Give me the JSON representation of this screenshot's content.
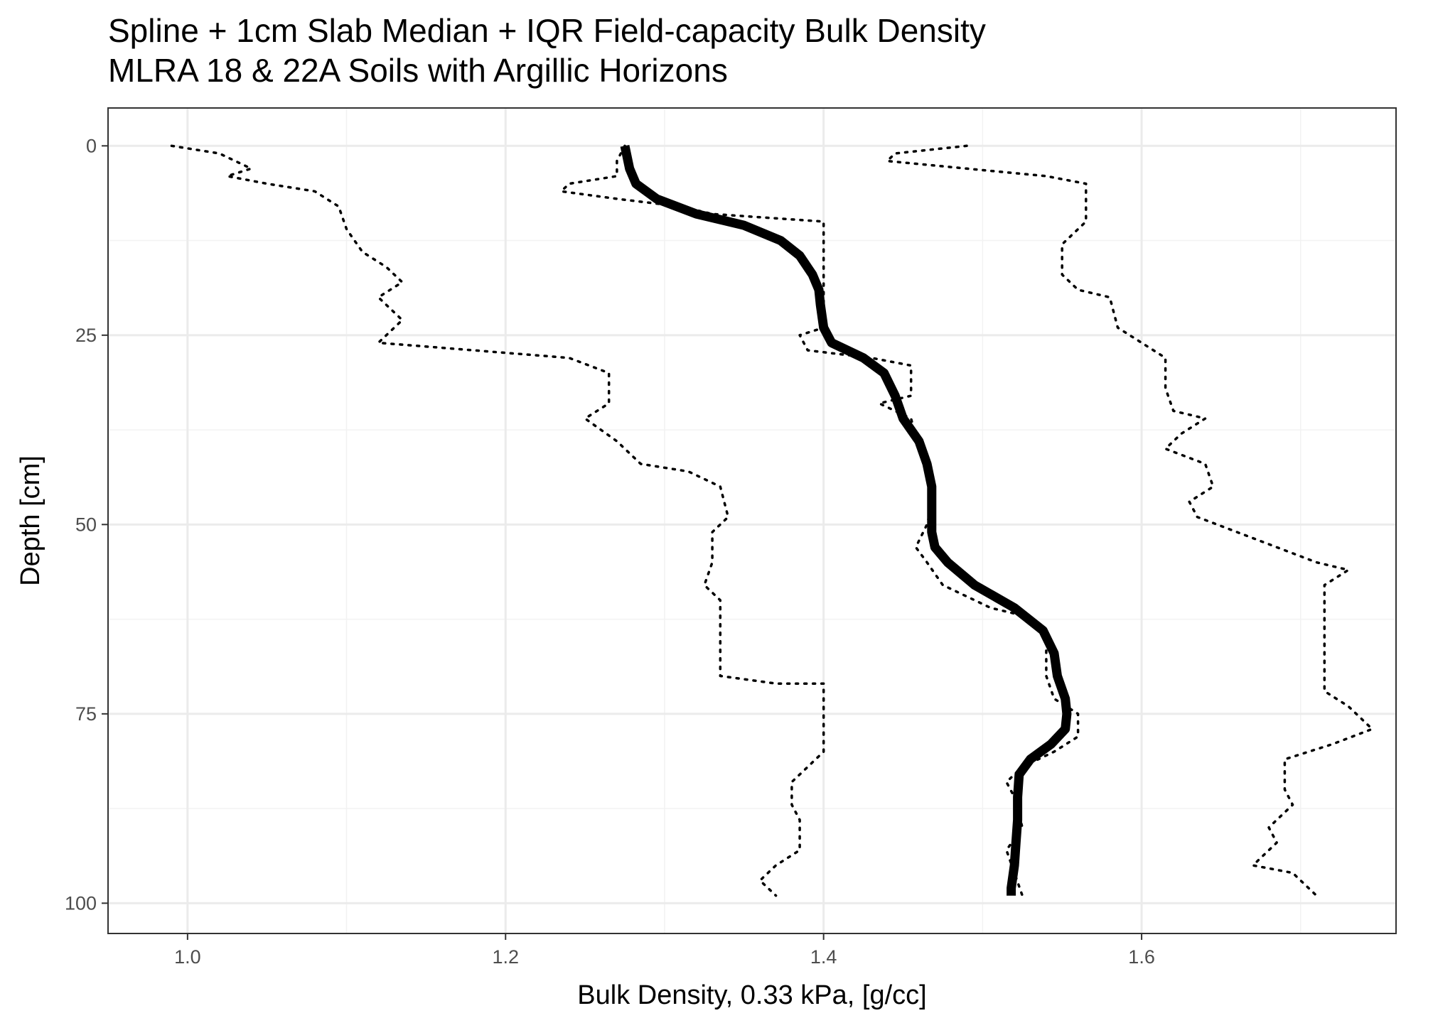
{
  "chart_data": {
    "type": "line",
    "title": "Spline + 1cm Slab Median + IQR Field-capacity Bulk Density",
    "subtitle": "MLRA 18 & 22A Soils with Argillic Horizons",
    "xlabel": "Bulk Density, 0.33 kPa, [g/cc]",
    "ylabel": "Depth [cm]",
    "xlim": [
      0.95,
      1.76
    ],
    "ylim": [
      -5,
      104
    ],
    "y_reversed": true,
    "grid": true,
    "x_ticks": [
      "1.0",
      "1.2",
      "1.4",
      "1.6"
    ],
    "x_tick_values": [
      1.0,
      1.2,
      1.4,
      1.6
    ],
    "y_ticks": [
      "0",
      "25",
      "50",
      "75",
      "100"
    ],
    "y_tick_values": [
      0,
      25,
      50,
      75,
      100
    ],
    "series": [
      {
        "style": "solid-thick",
        "points": [
          [
            1.275,
            0
          ],
          [
            1.278,
            3
          ],
          [
            1.282,
            5
          ],
          [
            1.295,
            7
          ],
          [
            1.32,
            9
          ],
          [
            1.35,
            10.5
          ],
          [
            1.373,
            12.5
          ],
          [
            1.385,
            14.5
          ],
          [
            1.393,
            17
          ],
          [
            1.397,
            19
          ],
          [
            1.398,
            21
          ],
          [
            1.4,
            24
          ],
          [
            1.405,
            26
          ],
          [
            1.425,
            28
          ],
          [
            1.438,
            30
          ],
          [
            1.445,
            33
          ],
          [
            1.45,
            36
          ],
          [
            1.46,
            39
          ],
          [
            1.465,
            42
          ],
          [
            1.468,
            45
          ],
          [
            1.468,
            48
          ],
          [
            1.468,
            51
          ],
          [
            1.47,
            53
          ],
          [
            1.478,
            55
          ],
          [
            1.495,
            58
          ],
          [
            1.52,
            61
          ],
          [
            1.538,
            64
          ],
          [
            1.545,
            67
          ],
          [
            1.547,
            70
          ],
          [
            1.552,
            73
          ],
          [
            1.553,
            75
          ],
          [
            1.552,
            77
          ],
          [
            1.543,
            79
          ],
          [
            1.53,
            81
          ],
          [
            1.523,
            83
          ],
          [
            1.522,
            86
          ],
          [
            1.522,
            89
          ],
          [
            1.521,
            92
          ],
          [
            1.52,
            95
          ],
          [
            1.518,
            98
          ],
          [
            1.518,
            99
          ]
        ]
      },
      {
        "style": "dotted",
        "points": [
          [
            1.275,
            0
          ],
          [
            1.27,
            2
          ],
          [
            1.27,
            4
          ],
          [
            1.24,
            5
          ],
          [
            1.235,
            6
          ],
          [
            1.27,
            7
          ],
          [
            1.31,
            8
          ],
          [
            1.33,
            9
          ],
          [
            1.4,
            10
          ],
          [
            1.4,
            15
          ],
          [
            1.4,
            20
          ],
          [
            1.4,
            24
          ],
          [
            1.385,
            25
          ],
          [
            1.39,
            27
          ],
          [
            1.43,
            28
          ],
          [
            1.455,
            29
          ],
          [
            1.455,
            33
          ],
          [
            1.435,
            34
          ],
          [
            1.455,
            36
          ],
          [
            1.46,
            40
          ],
          [
            1.465,
            43
          ],
          [
            1.47,
            46
          ],
          [
            1.465,
            50
          ],
          [
            1.458,
            53
          ],
          [
            1.465,
            55
          ],
          [
            1.475,
            58
          ],
          [
            1.495,
            60
          ],
          [
            1.505,
            61
          ],
          [
            1.525,
            62
          ],
          [
            1.54,
            64
          ],
          [
            1.54,
            70
          ],
          [
            1.545,
            73
          ],
          [
            1.56,
            75
          ],
          [
            1.56,
            78
          ],
          [
            1.545,
            80
          ],
          [
            1.525,
            82
          ],
          [
            1.515,
            84
          ],
          [
            1.52,
            86
          ],
          [
            1.525,
            90
          ],
          [
            1.515,
            93
          ],
          [
            1.52,
            96
          ],
          [
            1.525,
            99
          ]
        ]
      },
      {
        "style": "dotted",
        "points": [
          [
            0.99,
            0
          ],
          [
            1.02,
            1
          ],
          [
            1.04,
            3
          ],
          [
            1.025,
            4
          ],
          [
            1.05,
            5
          ],
          [
            1.08,
            6
          ],
          [
            1.095,
            8
          ],
          [
            1.1,
            11
          ],
          [
            1.11,
            14
          ],
          [
            1.125,
            16
          ],
          [
            1.135,
            18
          ],
          [
            1.12,
            20
          ],
          [
            1.135,
            23
          ],
          [
            1.12,
            26
          ],
          [
            1.18,
            27
          ],
          [
            1.24,
            28
          ],
          [
            1.265,
            30
          ],
          [
            1.265,
            34
          ],
          [
            1.25,
            36
          ],
          [
            1.27,
            39
          ],
          [
            1.285,
            42
          ],
          [
            1.315,
            43
          ],
          [
            1.335,
            45
          ],
          [
            1.34,
            49
          ],
          [
            1.33,
            51
          ],
          [
            1.33,
            55
          ],
          [
            1.325,
            58
          ],
          [
            1.335,
            60
          ],
          [
            1.335,
            65
          ],
          [
            1.335,
            70
          ],
          [
            1.37,
            71
          ],
          [
            1.4,
            71
          ],
          [
            1.4,
            80
          ],
          [
            1.39,
            82
          ],
          [
            1.38,
            84
          ],
          [
            1.38,
            87
          ],
          [
            1.385,
            89
          ],
          [
            1.385,
            93
          ],
          [
            1.37,
            95
          ],
          [
            1.36,
            97
          ],
          [
            1.37,
            99
          ]
        ]
      },
      {
        "style": "dotted",
        "points": [
          [
            1.49,
            0
          ],
          [
            1.445,
            1
          ],
          [
            1.44,
            2
          ],
          [
            1.49,
            3
          ],
          [
            1.54,
            4
          ],
          [
            1.565,
            5
          ],
          [
            1.565,
            10
          ],
          [
            1.55,
            13
          ],
          [
            1.55,
            17
          ],
          [
            1.56,
            19
          ],
          [
            1.58,
            20
          ],
          [
            1.585,
            24
          ],
          [
            1.6,
            26
          ],
          [
            1.615,
            28
          ],
          [
            1.615,
            32
          ],
          [
            1.62,
            35
          ],
          [
            1.64,
            36
          ],
          [
            1.625,
            38
          ],
          [
            1.615,
            40
          ],
          [
            1.64,
            42
          ],
          [
            1.645,
            45
          ],
          [
            1.63,
            47
          ],
          [
            1.635,
            49
          ],
          [
            1.66,
            51
          ],
          [
            1.685,
            53
          ],
          [
            1.71,
            55
          ],
          [
            1.73,
            56
          ],
          [
            1.715,
            58
          ],
          [
            1.715,
            65
          ],
          [
            1.715,
            72
          ],
          [
            1.73,
            74
          ],
          [
            1.745,
            77
          ],
          [
            1.72,
            79
          ],
          [
            1.69,
            81
          ],
          [
            1.69,
            85
          ],
          [
            1.695,
            87
          ],
          [
            1.68,
            90
          ],
          [
            1.685,
            92
          ],
          [
            1.675,
            94
          ],
          [
            1.67,
            95
          ],
          [
            1.695,
            96
          ],
          [
            1.71,
            99
          ]
        ]
      }
    ]
  }
}
